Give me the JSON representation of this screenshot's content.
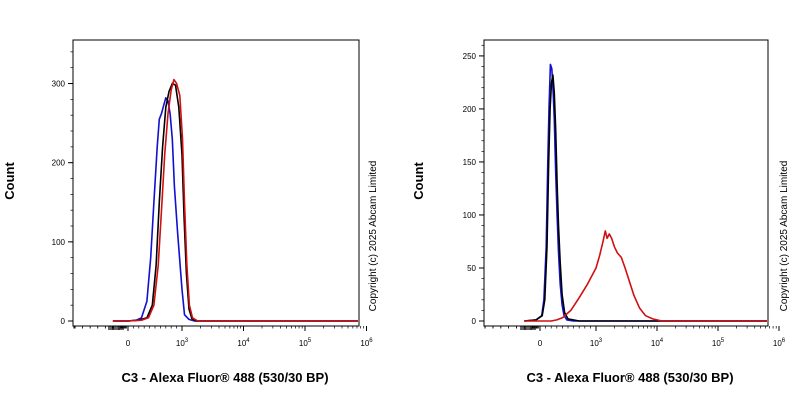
{
  "chart_data": [
    {
      "type": "line",
      "panel": "left",
      "xlabel": "C3 - Alexa Fluor® 488 (530/30 BP)",
      "ylabel": "Count",
      "annotation": "Copyright (c) 2025 Abcam Limited",
      "y_ticks": [
        0,
        100,
        200,
        300
      ],
      "ylim": [
        0,
        355
      ],
      "x_tick_labels": [
        {
          "value": 0,
          "base": "0",
          "exp": ""
        },
        {
          "value": 1000,
          "base": "10",
          "exp": "3"
        },
        {
          "value": 10000,
          "base": "10",
          "exp": "4"
        },
        {
          "value": 100000,
          "base": "10",
          "exp": "5"
        },
        {
          "value": 1000000,
          "base": "10",
          "exp": "6"
        }
      ],
      "xscale": "biexponential",
      "xlim": [
        -1000,
        1000000
      ],
      "series": [
        {
          "color": "#1010d0",
          "points": [
            [
              -200,
              0
            ],
            [
              0,
              0
            ],
            [
              150,
              1
            ],
            [
              250,
              4
            ],
            [
              350,
              25
            ],
            [
              420,
              80
            ],
            [
              480,
              150
            ],
            [
              540,
              220
            ],
            [
              580,
              255
            ],
            [
              620,
              262
            ],
            [
              660,
              272
            ],
            [
              700,
              282
            ],
            [
              740,
              278
            ],
            [
              780,
              262
            ],
            [
              820,
              230
            ],
            [
              860,
              170
            ],
            [
              920,
              110
            ],
            [
              1000,
              40
            ],
            [
              1100,
              8
            ],
            [
              1300,
              2
            ],
            [
              1600,
              0
            ],
            [
              1000000,
              0
            ]
          ]
        },
        {
          "color": "#000000",
          "points": [
            [
              -200,
              0
            ],
            [
              0,
              0
            ],
            [
              200,
              1
            ],
            [
              350,
              4
            ],
            [
              450,
              20
            ],
            [
              520,
              70
            ],
            [
              580,
              150
            ],
            [
              640,
              220
            ],
            [
              700,
              270
            ],
            [
              760,
              290
            ],
            [
              820,
              300
            ],
            [
              880,
              298
            ],
            [
              940,
              270
            ],
            [
              1000,
              210
            ],
            [
              1080,
              130
            ],
            [
              1180,
              60
            ],
            [
              1300,
              15
            ],
            [
              1450,
              3
            ],
            [
              1700,
              0
            ],
            [
              1000000,
              0
            ]
          ]
        },
        {
          "color": "#d01010",
          "points": [
            [
              -200,
              0
            ],
            [
              0,
              0
            ],
            [
              250,
              1
            ],
            [
              380,
              4
            ],
            [
              480,
              20
            ],
            [
              560,
              70
            ],
            [
              620,
              140
            ],
            [
              680,
              210
            ],
            [
              740,
              262
            ],
            [
              800,
              292
            ],
            [
              850,
              305
            ],
            [
              900,
              300
            ],
            [
              960,
              285
            ],
            [
              1020,
              230
            ],
            [
              1100,
              150
            ],
            [
              1200,
              70
            ],
            [
              1320,
              20
            ],
            [
              1480,
              4
            ],
            [
              1800,
              0
            ],
            [
              1000000,
              0
            ]
          ]
        }
      ]
    },
    {
      "type": "line",
      "panel": "right",
      "xlabel": "C3 - Alexa Fluor® 488 (530/30 BP)",
      "ylabel": "Count",
      "annotation": "Copyright (c) 2025 Abcam Limited",
      "y_ticks": [
        0,
        50,
        100,
        150,
        200,
        250
      ],
      "ylim": [
        0,
        265
      ],
      "x_tick_labels": [
        {
          "value": 0,
          "base": "0",
          "exp": ""
        },
        {
          "value": 1000,
          "base": "10",
          "exp": "3"
        },
        {
          "value": 10000,
          "base": "10",
          "exp": "4"
        },
        {
          "value": 100000,
          "base": "10",
          "exp": "5"
        },
        {
          "value": 1000000,
          "base": "10",
          "exp": "6"
        }
      ],
      "xscale": "biexponential",
      "xlim": [
        -1000,
        1000000
      ],
      "series": [
        {
          "color": "#1010d0",
          "points": [
            [
              -200,
              0
            ],
            [
              -50,
              1
            ],
            [
              30,
              5
            ],
            [
              70,
              20
            ],
            [
              110,
              70
            ],
            [
              140,
              150
            ],
            [
              160,
              200
            ],
            [
              185,
              242
            ],
            [
              210,
              238
            ],
            [
              235,
              215
            ],
            [
              255,
              190
            ],
            [
              280,
              140
            ],
            [
              305,
              100
            ],
            [
              330,
              65
            ],
            [
              360,
              35
            ],
            [
              395,
              15
            ],
            [
              430,
              5
            ],
            [
              480,
              1
            ],
            [
              600,
              0
            ],
            [
              1000000,
              0
            ]
          ]
        },
        {
          "color": "#000000",
          "points": [
            [
              -200,
              0
            ],
            [
              -50,
              1
            ],
            [
              40,
              5
            ],
            [
              85,
              20
            ],
            [
              125,
              70
            ],
            [
              155,
              150
            ],
            [
              180,
              200
            ],
            [
              205,
              225
            ],
            [
              230,
              232
            ],
            [
              255,
              215
            ],
            [
              280,
              180
            ],
            [
              305,
              130
            ],
            [
              330,
              90
            ],
            [
              360,
              55
            ],
            [
              395,
              25
            ],
            [
              440,
              8
            ],
            [
              500,
              2
            ],
            [
              700,
              0
            ],
            [
              1000000,
              0
            ]
          ]
        },
        {
          "color": "#d01010",
          "points": [
            [
              -200,
              0
            ],
            [
              200,
              0
            ],
            [
              300,
              1
            ],
            [
              400,
              3
            ],
            [
              550,
              10
            ],
            [
              700,
              22
            ],
            [
              850,
              35
            ],
            [
              1000,
              50
            ],
            [
              1150,
              62
            ],
            [
              1300,
              75
            ],
            [
              1420,
              85
            ],
            [
              1520,
              78
            ],
            [
              1650,
              82
            ],
            [
              1800,
              78
            ],
            [
              2000,
              70
            ],
            [
              2250,
              64
            ],
            [
              2600,
              60
            ],
            [
              3000,
              50
            ],
            [
              3500,
              38
            ],
            [
              4200,
              24
            ],
            [
              5200,
              12
            ],
            [
              6500,
              5
            ],
            [
              8500,
              2
            ],
            [
              12000,
              0
            ],
            [
              1000000,
              0
            ]
          ]
        }
      ]
    }
  ]
}
